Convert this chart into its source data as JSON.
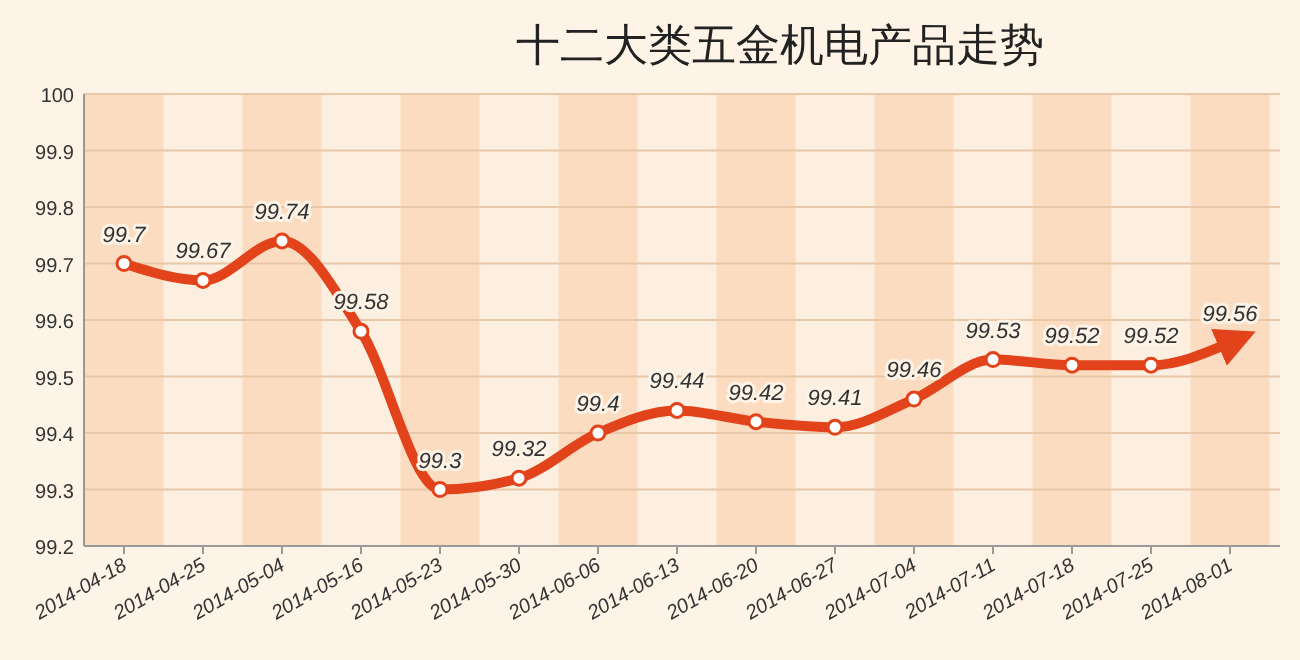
{
  "chart_data": {
    "type": "line",
    "title": "十二大类五金机电产品走势",
    "categories": [
      "2014-04-18",
      "2014-04-25",
      "2014-05-04",
      "2014-05-16",
      "2014-05-23",
      "2014-05-30",
      "2014-06-06",
      "2014-06-13",
      "2014-06-20",
      "2014-06-27",
      "2014-07-04",
      "2014-07-11",
      "2014-07-18",
      "2014-07-25",
      "2014-08-01"
    ],
    "series": [
      {
        "color": "#e2431b",
        "values": [
          99.7,
          99.67,
          99.74,
          99.58,
          99.3,
          99.32,
          99.4,
          99.44,
          99.42,
          99.41,
          99.46,
          99.53,
          99.52,
          99.52,
          99.56
        ]
      }
    ],
    "ylim": [
      99.2,
      100
    ],
    "yticks": [
      99.2,
      99.3,
      99.4,
      99.5,
      99.6,
      99.7,
      99.8,
      99.9,
      100
    ],
    "grid": "y",
    "marker": "circle",
    "line_style": "solid",
    "data_labels": true
  }
}
